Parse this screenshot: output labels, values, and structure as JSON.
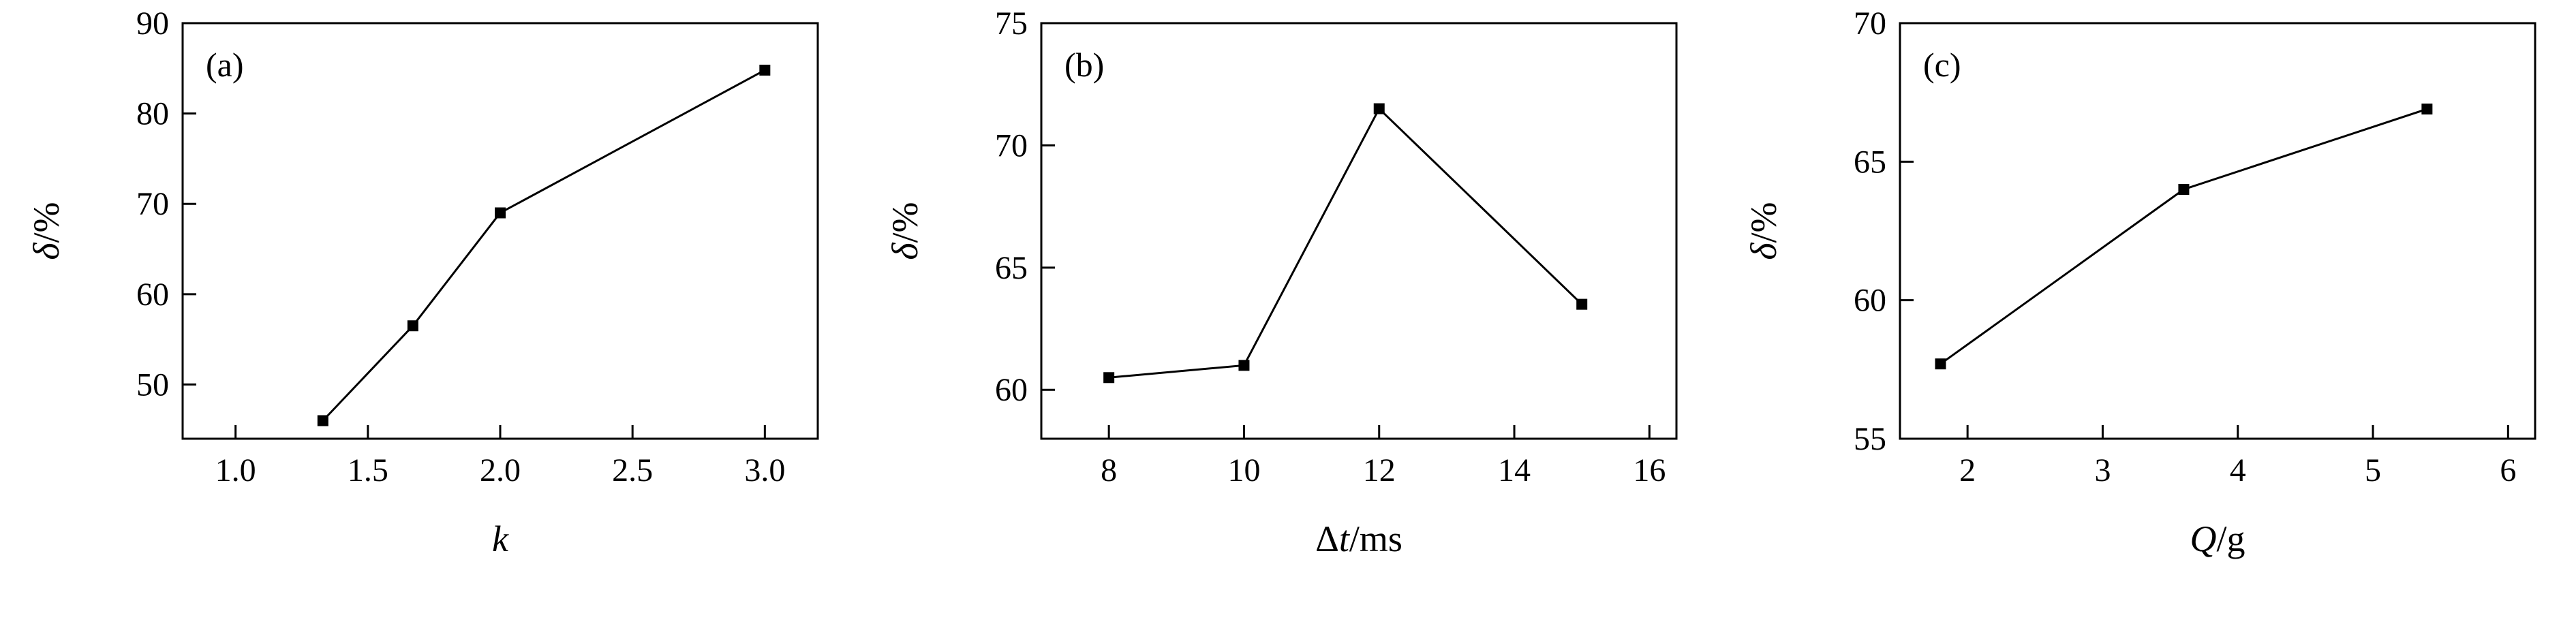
{
  "figure": {
    "background": "#ffffff",
    "ink": "#000000"
  },
  "chart_data": [
    {
      "type": "line",
      "panel_label": "(a)",
      "x": [
        1.33,
        1.67,
        2.0,
        3.0
      ],
      "y": [
        46.0,
        56.5,
        69.0,
        84.8
      ],
      "xlabel": "k",
      "ylabel": "δ/%",
      "xlabel_segments": [
        {
          "text": "k",
          "italic": true
        }
      ],
      "ylabel_segments": [
        {
          "text": "δ",
          "italic": true
        },
        {
          "text": "/%",
          "italic": false
        }
      ],
      "xlim": [
        0.8,
        3.2
      ],
      "ylim": [
        44,
        90
      ],
      "xtick_values": [
        1.0,
        1.5,
        2.0,
        2.5,
        3.0
      ],
      "xtick_labels": [
        "1.0",
        "1.5",
        "2.0",
        "2.5",
        "3.0"
      ],
      "ytick_values": [
        50,
        60,
        70,
        80,
        90
      ],
      "ytick_labels": [
        "50",
        "60",
        "70",
        "80",
        "90"
      ],
      "marker": "filled-square",
      "line_color": "#000000",
      "grid": false,
      "legend": null
    },
    {
      "type": "line",
      "panel_label": "(b)",
      "x": [
        8,
        10,
        12,
        15
      ],
      "y": [
        60.5,
        61.0,
        71.5,
        63.5
      ],
      "xlabel": "Δt/ms",
      "ylabel": "δ/%",
      "xlabel_segments": [
        {
          "text": "Δ",
          "italic": false
        },
        {
          "text": "t",
          "italic": true
        },
        {
          "text": "/ms",
          "italic": false
        }
      ],
      "ylabel_segments": [
        {
          "text": "δ",
          "italic": true
        },
        {
          "text": "/%",
          "italic": false
        }
      ],
      "xlim": [
        7,
        16.4
      ],
      "ylim": [
        58,
        75
      ],
      "xtick_values": [
        8,
        10,
        12,
        14,
        16
      ],
      "xtick_labels": [
        "8",
        "10",
        "12",
        "14",
        "16"
      ],
      "ytick_values": [
        60,
        65,
        70,
        75
      ],
      "ytick_labels": [
        "60",
        "65",
        "70",
        "75"
      ],
      "marker": "filled-square",
      "line_color": "#000000",
      "grid": false,
      "legend": null
    },
    {
      "type": "line",
      "panel_label": "(c)",
      "x": [
        1.8,
        3.6,
        5.4
      ],
      "y": [
        57.7,
        64.0,
        66.9
      ],
      "xlabel": "Q/g",
      "ylabel": "δ/%",
      "xlabel_segments": [
        {
          "text": "Q",
          "italic": true
        },
        {
          "text": "/g",
          "italic": false
        }
      ],
      "ylabel_segments": [
        {
          "text": "δ",
          "italic": true
        },
        {
          "text": "/%",
          "italic": false
        }
      ],
      "xlim": [
        1.5,
        6.2
      ],
      "ylim": [
        55,
        70
      ],
      "xtick_values": [
        2,
        3,
        4,
        5,
        6
      ],
      "xtick_labels": [
        "2",
        "3",
        "4",
        "5",
        "6"
      ],
      "ytick_values": [
        55,
        60,
        65,
        70
      ],
      "ytick_labels": [
        "55",
        "60",
        "65",
        "70"
      ],
      "marker": "filled-square",
      "line_color": "#000000",
      "grid": false,
      "legend": null
    }
  ]
}
